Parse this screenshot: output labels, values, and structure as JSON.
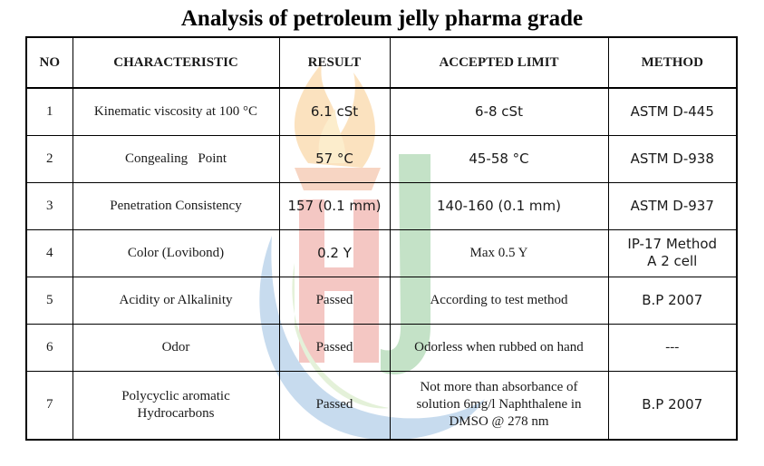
{
  "title": "Analysis of petroleum jelly pharma grade",
  "headers": {
    "no": "NO",
    "characteristic": "CHARACTERISTIC",
    "result": "RESULT",
    "accepted_limit": "ACCEPTED LIMIT",
    "method": "METHOD"
  },
  "rows": [
    {
      "no": "1",
      "characteristic": "Kinematic viscosity at 100 °C",
      "result": "6.1 cSt",
      "accepted_limit": "6-8 cSt",
      "method": "ASTM D-445"
    },
    {
      "no": "2",
      "characteristic": "Congealing   Point",
      "result": "57 °C",
      "accepted_limit": "45-58 °C",
      "method": "ASTM D-938"
    },
    {
      "no": "3",
      "characteristic": "Penetration Consistency",
      "result": "157 (0.1 mm)",
      "accepted_limit": "140-160 (0.1 mm)",
      "method": "ASTM D-937"
    },
    {
      "no": "4",
      "characteristic": "Color (Lovibond)",
      "result": "0.2 Y",
      "accepted_limit": "Max 0.5 Y",
      "method_line1": "IP-17 Method",
      "method_line2": "A 2 cell"
    },
    {
      "no": "5",
      "characteristic": "Acidity or Alkalinity",
      "result": "Passed",
      "accepted_limit": "According to test method",
      "method": "B.P 2007"
    },
    {
      "no": "6",
      "characteristic": "Odor",
      "result": "Passed",
      "accepted_limit": "Odorless when rubbed on hand",
      "method": "---"
    },
    {
      "no": "7",
      "characteristic_line1": "Polycyclic aromatic",
      "characteristic_line2": "Hydrocarbons",
      "result": "Passed",
      "accepted_limit_line1": "Not more than absorbance of",
      "accepted_limit_line2": "solution 6mg/l Naphthalene in",
      "accepted_limit_line3": "DMSO @ 278 nm",
      "method": "B.P 2007"
    }
  ],
  "watermark": {
    "icon": "flame-logo-watermark",
    "flame_color": "#f39a1e",
    "letter_h_color": "#d9392b",
    "letter_j_color": "#2f9a3a",
    "swoosh_color": "#3a7fc4"
  }
}
